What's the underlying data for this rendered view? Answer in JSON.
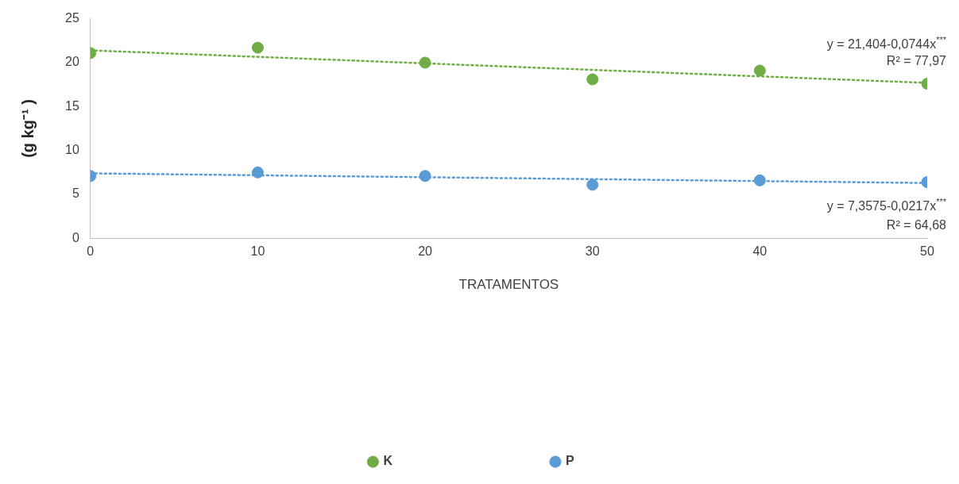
{
  "chart_data": {
    "type": "scatter",
    "xlabel": "TRATAMENTOS",
    "ylabel": "(g kg⁻¹ )",
    "xlim": [
      0,
      50
    ],
    "xticks": [
      0,
      10,
      20,
      30,
      40,
      50
    ],
    "ylim": [
      0,
      25
    ],
    "yticks": [
      0,
      5,
      10,
      15,
      20,
      25
    ],
    "legend": "bottom",
    "marker": "circle",
    "series": [
      {
        "name": "K",
        "color": "#70ad47",
        "x": [
          0,
          10,
          20,
          30,
          40,
          50
        ],
        "values": [
          21.1,
          21.7,
          20.0,
          18.1,
          19.1,
          17.6
        ]
      },
      {
        "name": "P",
        "color": "#5b9bd5",
        "x": [
          0,
          10,
          20,
          30,
          40,
          50
        ],
        "values": [
          7.1,
          7.5,
          7.1,
          6.1,
          6.6,
          6.4
        ]
      },
      {
        "type": "line",
        "color": "#70ad47",
        "x": [
          0,
          50
        ],
        "values": [
          21.4,
          17.7
        ],
        "marker": "none",
        "line_style": "dotted"
      },
      {
        "type": "line",
        "color": "#5b9bd5",
        "x": [
          0,
          50
        ],
        "values": [
          7.4,
          6.3
        ],
        "marker": "none",
        "line_style": "dotted"
      }
    ],
    "annotations": [
      "y = 21,404-0,0744x$^{***}$",
      "R² = 77,97",
      "y = 7,3575-0,0217x$^{***}$",
      "R² = 64,68"
    ]
  }
}
